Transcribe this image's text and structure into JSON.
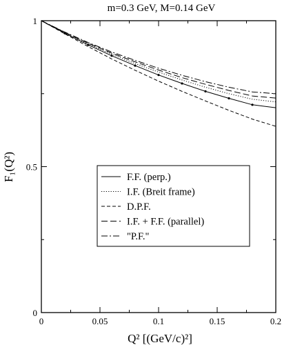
{
  "chart_data": {
    "type": "line",
    "title": "m=0.3 GeV, M=0.14 GeV",
    "xlabel": "Q² [(GeV/c)²]",
    "ylabel": "F₁(Q²)",
    "xlim": [
      0,
      0.2
    ],
    "ylim": [
      0,
      1
    ],
    "x_ticks": [
      0,
      0.05,
      0.1,
      0.15,
      0.2
    ],
    "x_tick_labels": [
      "0",
      "0.05",
      "0.1",
      "0.15",
      "0.2"
    ],
    "y_ticks": [
      0,
      0.5,
      1
    ],
    "y_tick_labels": [
      "0",
      "0.5",
      "1"
    ],
    "grid": false,
    "legend_position": "lower-center",
    "x": [
      0,
      0.02,
      0.04,
      0.06,
      0.08,
      0.1,
      0.12,
      0.14,
      0.16,
      0.18,
      0.2
    ],
    "series": [
      {
        "name": "F.F. (perp.)",
        "style": "solid",
        "markers": true,
        "values": [
          1.0,
          0.957,
          0.917,
          0.88,
          0.846,
          0.814,
          0.785,
          0.758,
          0.734,
          0.712,
          0.702
        ]
      },
      {
        "name": "I.F. (Breit frame)",
        "style": "dotted",
        "markers": false,
        "values": [
          1.0,
          0.958,
          0.92,
          0.885,
          0.853,
          0.824,
          0.797,
          0.772,
          0.75,
          0.731,
          0.722
        ]
      },
      {
        "name": "D.P.F.",
        "style": "dashed",
        "markers": false,
        "values": [
          1.0,
          0.955,
          0.911,
          0.869,
          0.83,
          0.793,
          0.758,
          0.725,
          0.693,
          0.663,
          0.638
        ]
      },
      {
        "name": "I.F. +  F.F. (parallel)",
        "style": "longdash",
        "markers": false,
        "values": [
          1.0,
          0.96,
          0.923,
          0.889,
          0.859,
          0.831,
          0.805,
          0.782,
          0.761,
          0.742,
          0.735
        ]
      },
      {
        "name": "\"P.F.\"",
        "style": "dashdot",
        "markers": false,
        "values": [
          1.0,
          0.961,
          0.925,
          0.893,
          0.864,
          0.837,
          0.813,
          0.791,
          0.772,
          0.756,
          0.75
        ]
      }
    ]
  }
}
